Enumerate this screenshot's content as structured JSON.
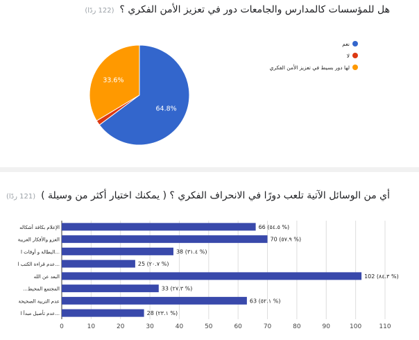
{
  "questions": [
    {
      "title": "هل للمؤسسات كالمدارس والجامعات دور في تعزيز الأمن الفكري ؟",
      "response_count": "(122 ردًا)"
    },
    {
      "title": "أي من الوسائل الآتية تلعب دورًا في الانحراف الفكري ؟ ( يمكنك اختيار أكثر من وسيلة )",
      "response_count": "(121 ردًا)"
    }
  ],
  "chart_data": [
    {
      "type": "pie",
      "slices": [
        {
          "label": "نعم",
          "value": 64.8,
          "display": "64.8%",
          "color": "#3366cc"
        },
        {
          "label": "لا",
          "value": 1.6,
          "display": "",
          "color": "#dc3912"
        },
        {
          "label": "لها دور بسيط في تعزيز الأمن الفكري",
          "value": 33.6,
          "display": "33.6%",
          "color": "#ff9900"
        }
      ],
      "legend_position": "right"
    },
    {
      "type": "bar",
      "orientation": "horizontal",
      "categories": [
        "الإعلام بكافة أشكاله",
        "الغزو والأفكار الغريبة",
        "البطالة و أوقات ا...",
        "عدم قراءة الكتب ا...",
        "البعد عن الله",
        "...المجتمع المحيط",
        "عدم التربية الصحيحة",
        "عدم تأصيل مبدأ ا..."
      ],
      "values": [
        66,
        70,
        38,
        25,
        102,
        33,
        63,
        28
      ],
      "value_labels": [
        "66 (٥٤.٥ %)",
        "70 (٥٧.٩ %)",
        "38 (٣١.٤ %)",
        "25 (٢٠.٧ %)",
        "102 (٨٤.٣ %)",
        "33 (٢٧.٣ %)",
        "63 (٥٢.١ %)",
        "28 (٢٣.١ %)"
      ],
      "xlim": [
        0,
        110
      ],
      "xticks": [
        0,
        10,
        20,
        30,
        40,
        50,
        60,
        70,
        80,
        90,
        100,
        110
      ],
      "grid": true,
      "bar_color": "#3949ab"
    }
  ]
}
